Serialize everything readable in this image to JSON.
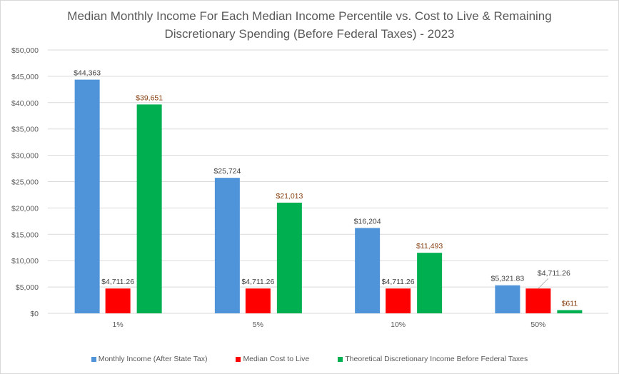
{
  "chart_data": {
    "type": "bar",
    "title": "Median Monthly Income For Each Median Income Percentile vs. Cost to Live & Remaining Discretionary Spending (Before Federal Taxes) - 2023",
    "title_lines": [
      "Median Monthly Income For Each Median Income Percentile vs. Cost to Live & Remaining",
      "Discretionary Spending (Before Federal Taxes) - 2023"
    ],
    "categories": [
      "1%",
      "5%",
      "10%",
      "50%"
    ],
    "series": [
      {
        "name": "Monthly Income (After State Tax)",
        "color": "#4f94d9",
        "values": [
          44363,
          25724,
          16204,
          5321.83
        ],
        "labels": [
          "$44,363",
          "$25,724",
          "$16,204",
          "$5,321.83"
        ],
        "label_color": "#404040"
      },
      {
        "name": "Median Cost to Live",
        "color": "#ff0000",
        "values": [
          4711.26,
          4711.26,
          4711.26,
          4711.26
        ],
        "labels": [
          "$4,711.26",
          "$4,711.26",
          "$4,711.26",
          "$4,711.26"
        ],
        "label_color": "#404040"
      },
      {
        "name": "Theoretical Discretionary Income Before Federal Taxes",
        "color": "#00b050",
        "values": [
          39651,
          21013,
          11493,
          611
        ],
        "labels": [
          "$39,651",
          "$21,013",
          "$11,493",
          "$611"
        ],
        "label_color": "#843c0c"
      }
    ],
    "ylim": [
      0,
      50000
    ],
    "yticks": [
      0,
      5000,
      10000,
      15000,
      20000,
      25000,
      30000,
      35000,
      40000,
      45000,
      50000
    ],
    "ytick_labels": [
      "$0",
      "$5,000",
      "$10,000",
      "$15,000",
      "$20,000",
      "$25,000",
      "$30,000",
      "$35,000",
      "$40,000",
      "$45,000",
      "$50,000"
    ],
    "xlabel": "",
    "ylabel": "",
    "grid": true,
    "legend": "bottom"
  }
}
